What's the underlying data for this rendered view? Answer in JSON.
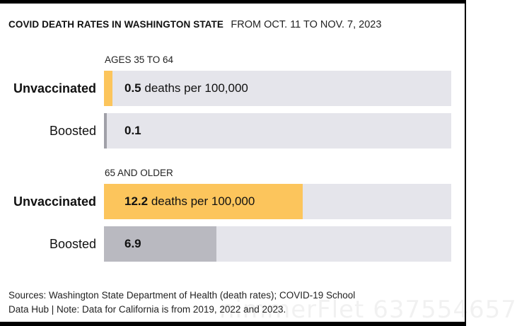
{
  "header": {
    "title": "COVID DEATH RATES IN WASHINGTON STATE",
    "subtitle": "FROM OCT. 11 TO NOV. 7, 2023"
  },
  "chart_data": {
    "type": "bar",
    "title": "COVID DEATH RATES IN WASHINGTON STATE",
    "subtitle": "FROM OCT. 11 TO NOV. 7, 2023",
    "unit": "deaths per 100,000",
    "xlim": [
      0,
      21.3
    ],
    "groups": [
      {
        "label": "AGES 35 TO 64",
        "bars": [
          {
            "label": "Unvaccinated",
            "value": 0.5,
            "value_text": "0.5",
            "unit_text": "deaths per 100,000",
            "color": "#fcc55c",
            "bold_label": true
          },
          {
            "label": "Boosted",
            "value": 0.1,
            "value_text": "0.1",
            "unit_text": "",
            "color": "#a0a0a8",
            "bold_label": false
          }
        ]
      },
      {
        "label": "65 AND OLDER",
        "bars": [
          {
            "label": "Unvaccinated",
            "value": 12.2,
            "value_text": "12.2",
            "unit_text": "deaths per 100,000",
            "color": "#fcc55c",
            "bold_label": true
          },
          {
            "label": "Boosted",
            "value": 6.9,
            "value_text": "6.9",
            "unit_text": "",
            "color": "#b9b9c0",
            "bold_label": false
          }
        ]
      }
    ]
  },
  "colors": {
    "track": "#e5e5eb",
    "unvaccinated": "#fcc55c",
    "boosted": "#b9b9c0"
  },
  "sources": {
    "line1": "Sources: Washington State Department of Health (death rates); COVID-19 School",
    "line2": "Data Hub | Note: Data for California is from 2019, 2022 and 2023."
  },
  "watermark": "nimmerFlet 637554657"
}
